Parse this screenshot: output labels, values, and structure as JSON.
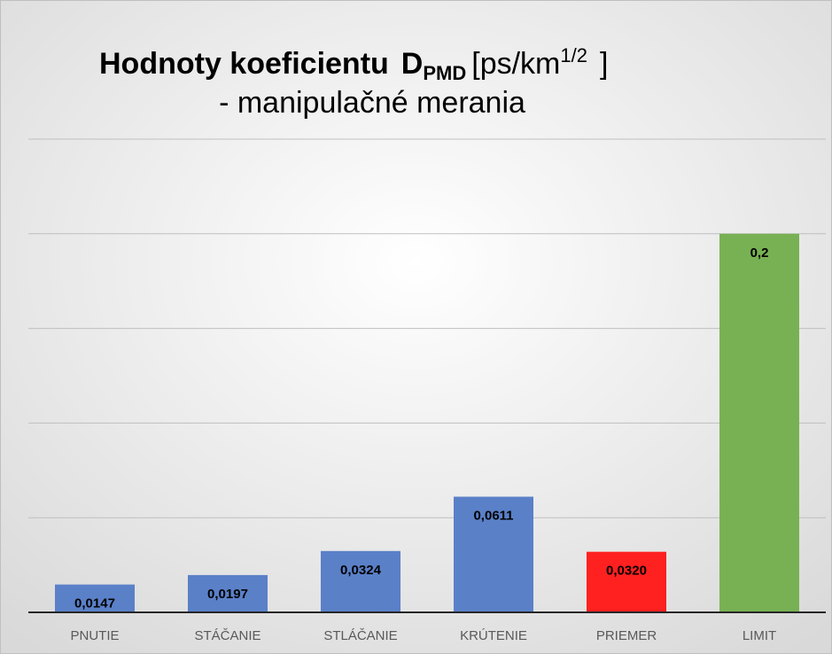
{
  "chart_data": {
    "type": "bar",
    "title": [
      "Hodnoty koeficientu",
      "D",
      "PMD",
      "[ps/km",
      "1/2",
      "]"
    ],
    "subtitle": "- manipulačné merania",
    "categories": [
      "PNUTIE",
      "STÁČANIE",
      "STLÁČANIE",
      "KRÚTENIE",
      "PRIEMER",
      "LIMIT"
    ],
    "values": [
      0.0147,
      0.0197,
      0.0324,
      0.0611,
      0.032,
      0.2
    ],
    "value_labels": [
      "0,0147",
      "0,0197",
      "0,0324",
      "0,0611",
      "0,0320",
      "0,2"
    ],
    "colors": [
      "#5a80c8",
      "#5a80c8",
      "#5a80c8",
      "#5a80c8",
      "#ff2020",
      "#78b153"
    ],
    "ylim": [
      0,
      0.25
    ],
    "yticks": [
      0,
      0.05,
      0.1,
      0.15,
      0.2,
      0.25
    ],
    "ytick_labels": false,
    "grid": true
  }
}
